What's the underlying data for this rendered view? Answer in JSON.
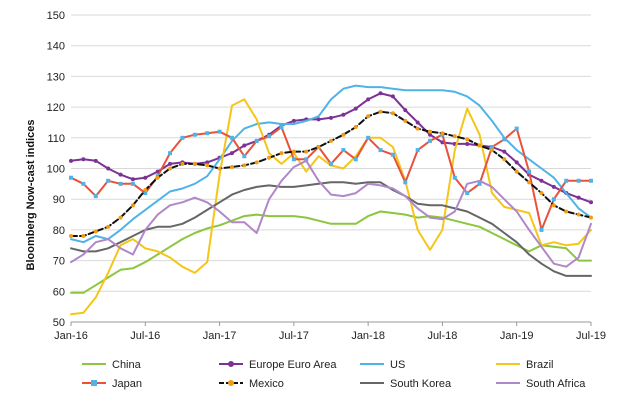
{
  "chart_data": {
    "type": "line",
    "title": "",
    "xlabel": "",
    "ylabel": "Bloomberg Now-cast indices",
    "ylim": [
      50,
      150
    ],
    "yticks": [
      50,
      60,
      70,
      80,
      90,
      100,
      110,
      120,
      130,
      140,
      150
    ],
    "x_range": [
      0,
      42
    ],
    "x_ticks": [
      {
        "index": 0,
        "label": "Jan-16"
      },
      {
        "index": 6,
        "label": "Jul-16"
      },
      {
        "index": 12,
        "label": "Jan-17"
      },
      {
        "index": 18,
        "label": "Jul-17"
      },
      {
        "index": 24,
        "label": "Jan-18"
      },
      {
        "index": 30,
        "label": "Jul-18"
      },
      {
        "index": 36,
        "label": "Jan-19"
      },
      {
        "index": 42,
        "label": "Jul-19"
      }
    ],
    "grid": "horizontal",
    "legend_position": "bottom",
    "series": [
      {
        "name": "China",
        "color": "#8cc63f",
        "marker": "none",
        "values": [
          59.5,
          59.5,
          62,
          64.5,
          67,
          67.5,
          69.5,
          72,
          74.5,
          77,
          79,
          80.5,
          81.5,
          83,
          84.5,
          85,
          84.5,
          84.5,
          84.5,
          84,
          83,
          82,
          82,
          82,
          84.5,
          86,
          85.5,
          85,
          84,
          84.5,
          84,
          83,
          82,
          81,
          79,
          77,
          75,
          73,
          75,
          74.5,
          74,
          70,
          70
        ]
      },
      {
        "name": "Europe Euro Area",
        "color": "#7b3294",
        "marker": "circle",
        "values": [
          102.5,
          103,
          102.5,
          100,
          98,
          96.5,
          97,
          99,
          101.5,
          102,
          101.5,
          102,
          103.5,
          105,
          107.5,
          109,
          111,
          114,
          115.5,
          116,
          116,
          116.5,
          117.5,
          119.5,
          122.5,
          124.5,
          123.5,
          119,
          115,
          111,
          108.5,
          108,
          108,
          107.5,
          107,
          105.5,
          102,
          98,
          96,
          94,
          92,
          90.5,
          89
        ]
      },
      {
        "name": "US",
        "color": "#4fb3e8",
        "marker": "none",
        "values": [
          77,
          76,
          78,
          77,
          80,
          83.5,
          86.5,
          89.5,
          92.5,
          93.5,
          95,
          97.5,
          103,
          109,
          113,
          114.5,
          115,
          114.5,
          114.5,
          115.5,
          117,
          122.5,
          126,
          127,
          126.5,
          126.5,
          126,
          125.5,
          125.5,
          125.5,
          125.5,
          125,
          123.5,
          120.5,
          115.5,
          110,
          106,
          103,
          100,
          97,
          92,
          87,
          84
        ]
      },
      {
        "name": "Brazil",
        "color": "#f5c518",
        "marker": "none",
        "values": [
          52.5,
          53,
          58,
          66,
          75,
          77,
          74,
          73,
          71,
          68,
          66,
          69.5,
          98,
          120.5,
          122.5,
          116,
          105,
          101.5,
          105,
          99,
          104,
          101,
          100,
          104,
          110,
          110,
          107,
          96,
          80,
          73.5,
          80,
          106,
          119.5,
          111,
          92,
          87.5,
          86.5,
          85.5,
          75,
          76,
          75,
          75.5,
          80
        ]
      },
      {
        "name": "Japan",
        "color": "#e8513a",
        "marker": "square",
        "marker_color": "#4fb3e8",
        "values": [
          97,
          95,
          91,
          96,
          95,
          95,
          92,
          97.5,
          105,
          110,
          111,
          111.5,
          112,
          110,
          104,
          109,
          110.5,
          113.5,
          103,
          103,
          107,
          101.5,
          106,
          103,
          110,
          106,
          104.5,
          95.5,
          106,
          109,
          111,
          97,
          92,
          95,
          107,
          109.5,
          113,
          99,
          80,
          90,
          96,
          96,
          96
        ]
      },
      {
        "name": "Mexico",
        "color": "#111111",
        "marker": "circle",
        "marker_color": "#f39c12",
        "dashed": true,
        "values": [
          78,
          78,
          79.5,
          81,
          84,
          88,
          93,
          97,
          100,
          101.5,
          101.5,
          101,
          100,
          100.5,
          101,
          102,
          103.5,
          105,
          105.5,
          105.5,
          107,
          109,
          111,
          113.5,
          117,
          118.5,
          118,
          115.5,
          113,
          112,
          111.5,
          110.5,
          109.5,
          107.5,
          106,
          103,
          99,
          95.5,
          92,
          88,
          86,
          85,
          84
        ]
      },
      {
        "name": "South Korea",
        "color": "#666666",
        "marker": "none",
        "values": [
          74,
          73,
          73,
          74,
          76,
          78,
          80,
          81,
          81,
          82,
          84,
          86.5,
          89,
          91.5,
          93,
          94,
          94.5,
          94,
          94,
          94.5,
          95,
          95.5,
          95.5,
          95,
          95.5,
          95.5,
          93,
          91,
          88.5,
          88,
          88,
          87,
          86,
          84,
          82,
          79,
          76,
          72,
          69,
          66.5,
          65,
          65,
          65
        ]
      },
      {
        "name": "South Africa",
        "color": "#b088c8",
        "marker": "none",
        "values": [
          69.5,
          72,
          76,
          77,
          74,
          72,
          80,
          85,
          88,
          89,
          90.5,
          89,
          86,
          82.5,
          82.5,
          79,
          90,
          96,
          100.5,
          102.5,
          96,
          91.5,
          91,
          92,
          95,
          94.5,
          93.5,
          91,
          87,
          84,
          83.5,
          86,
          95,
          96,
          94,
          90,
          86,
          80,
          74.5,
          69,
          68,
          71,
          82
        ]
      }
    ]
  }
}
